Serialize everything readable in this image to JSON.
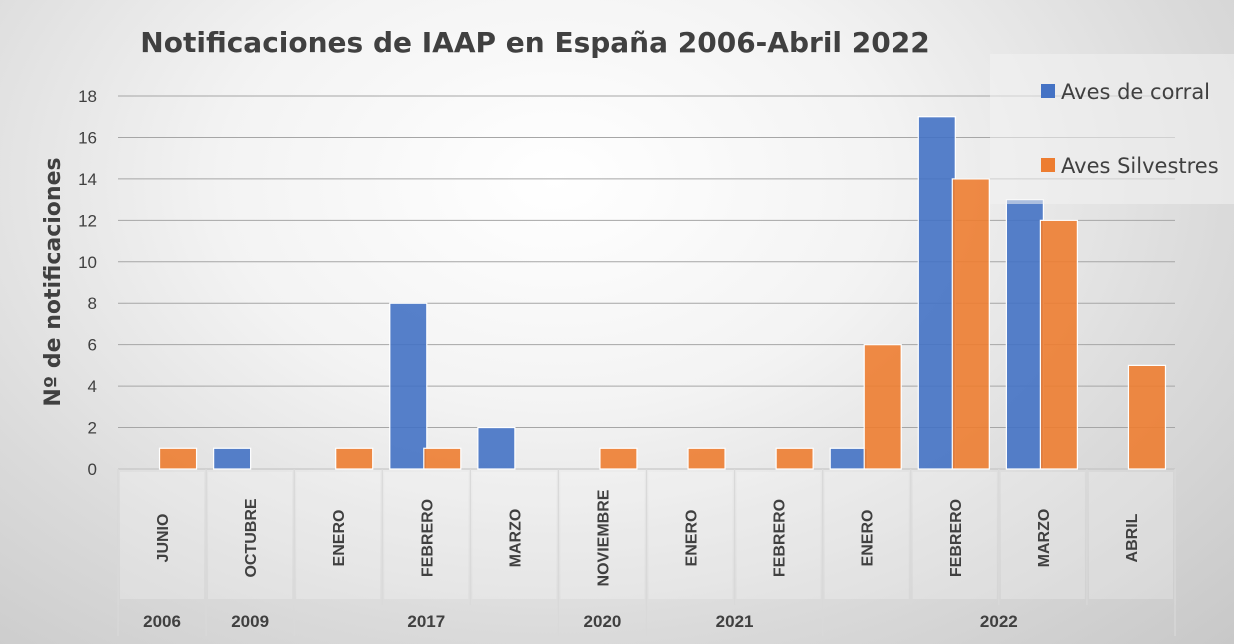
{
  "chart_data": {
    "type": "bar",
    "title": "Notificaciones de IAAP en España 2006-Abril 2022",
    "ylabel": "Nº de notificaciones",
    "ylim": [
      0,
      18
    ],
    "yticks": [
      0,
      2,
      4,
      6,
      8,
      10,
      12,
      14,
      16,
      18
    ],
    "grid": true,
    "legend_position": "top-right",
    "categories": [
      {
        "month": "JUNIO",
        "year": "2006"
      },
      {
        "month": "OCTUBRE",
        "year": "2009"
      },
      {
        "month": "ENERO",
        "year": "2017"
      },
      {
        "month": "FEBRERO",
        "year": "2017"
      },
      {
        "month": "MARZO",
        "year": "2017"
      },
      {
        "month": "NOVIEMBRE",
        "year": "2020"
      },
      {
        "month": "ENERO",
        "year": "2021"
      },
      {
        "month": "FEBRERO",
        "year": "2021"
      },
      {
        "month": "ENERO",
        "year": "2022"
      },
      {
        "month": "FEBRERO",
        "year": "2022"
      },
      {
        "month": "MARZO",
        "year": "2022"
      },
      {
        "month": "ABRIL",
        "year": "2022"
      }
    ],
    "year_groups": [
      {
        "label": "2006",
        "start": 0,
        "end": 0
      },
      {
        "label": "2009",
        "start": 1,
        "end": 1
      },
      {
        "label": "2017",
        "start": 2,
        "end": 4
      },
      {
        "label": "2020",
        "start": 5,
        "end": 5
      },
      {
        "label": "2021",
        "start": 6,
        "end": 7
      },
      {
        "label": "2022",
        "start": 8,
        "end": 11
      }
    ],
    "series": [
      {
        "name": "Aves de corral",
        "color": "#4472C4",
        "values": [
          0,
          1,
          0,
          8,
          2,
          0,
          0,
          0,
          1,
          17,
          13,
          0
        ]
      },
      {
        "name": "Aves Silvestres",
        "color": "#ED7D31",
        "values": [
          1,
          0,
          1,
          1,
          0,
          1,
          1,
          1,
          6,
          14,
          12,
          5
        ]
      }
    ]
  }
}
